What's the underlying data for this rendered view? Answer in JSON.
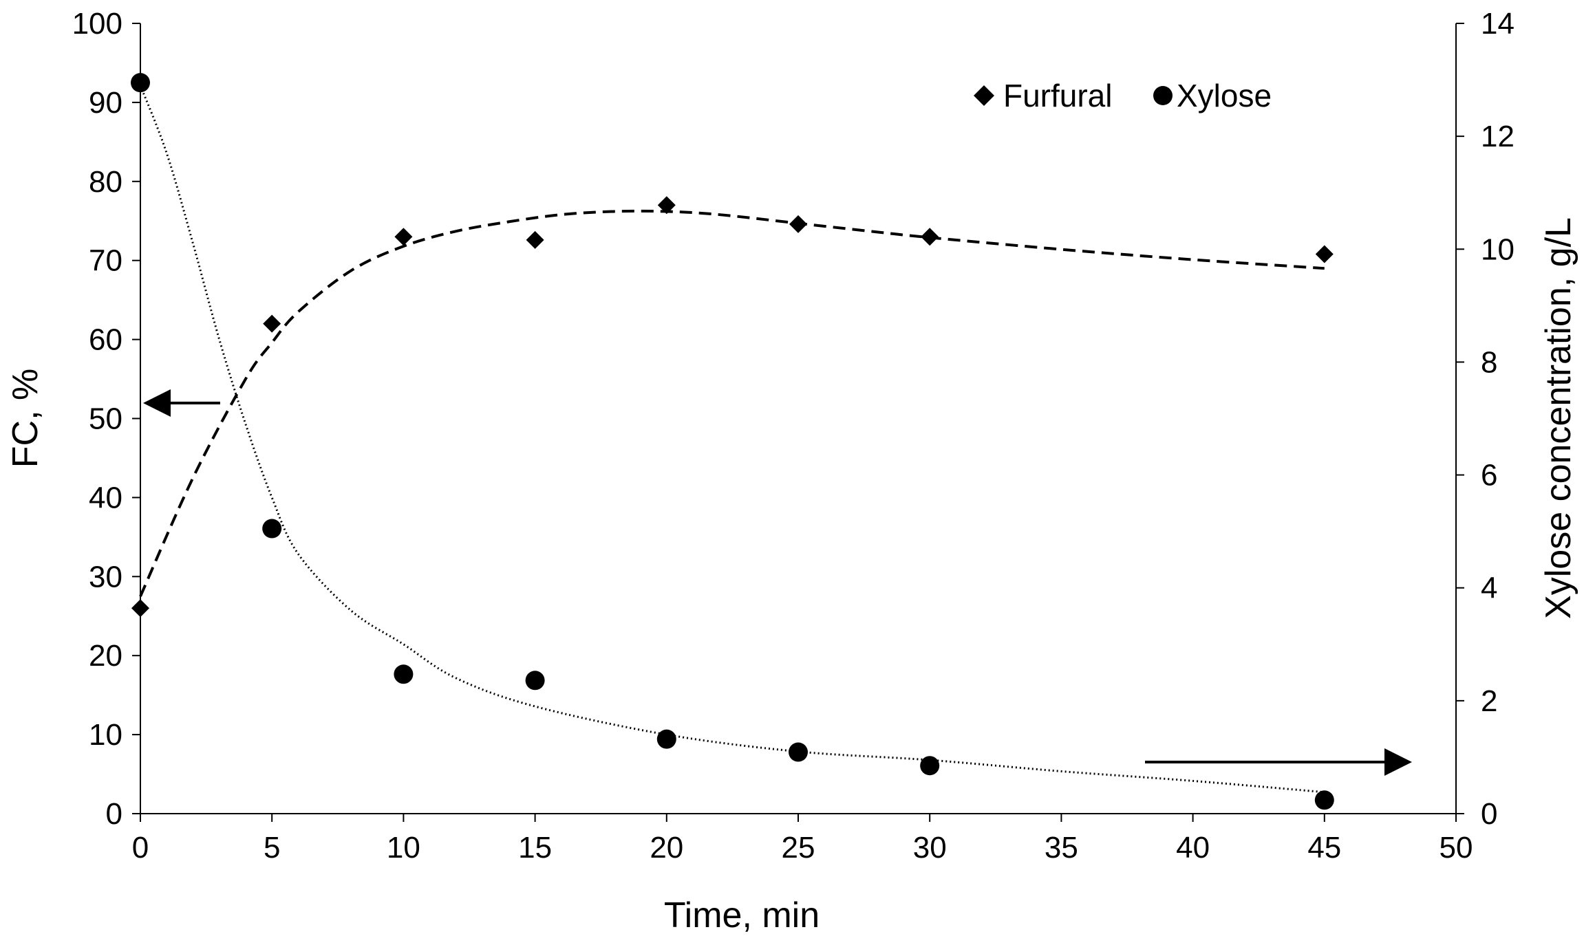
{
  "chart_data": {
    "type": "scatter",
    "title": "",
    "xlabel": "Time, min",
    "ylabel_left": "FC, %",
    "ylabel_right": "Xylose concentration, g/L",
    "xlim": [
      0,
      50
    ],
    "ylim_left": [
      0,
      100
    ],
    "ylim_right": [
      0,
      14
    ],
    "x_ticks": [
      0,
      5,
      10,
      15,
      20,
      25,
      30,
      35,
      40,
      45,
      50
    ],
    "y_left_ticks": [
      0,
      10,
      20,
      30,
      40,
      50,
      60,
      70,
      80,
      90,
      100
    ],
    "y_right_ticks": [
      0,
      2,
      4,
      6,
      8,
      10,
      12,
      14
    ],
    "grid": false,
    "legend_position": "top-right",
    "series": [
      {
        "name": "Furfural",
        "axis": "left",
        "marker": "diamond",
        "x": [
          0,
          5,
          10,
          15,
          20,
          25,
          30,
          45
        ],
        "values": [
          26,
          62,
          73,
          72.6,
          77,
          74.6,
          73,
          70.8
        ],
        "trend_style": "dashed",
        "trend_x": [
          0,
          2,
          4,
          5,
          6,
          8,
          10,
          12,
          14,
          16,
          18,
          20,
          22,
          25,
          28,
          30,
          35,
          40,
          45
        ],
        "trend_y": [
          27.5,
          42.5,
          55,
          59.6,
          63.5,
          68.7,
          71.8,
          73.7,
          74.9,
          75.8,
          76.2,
          76.2,
          75.8,
          74.7,
          73.6,
          72.9,
          71.4,
          70.1,
          69
        ]
      },
      {
        "name": "Xylose",
        "axis": "right",
        "marker": "circle",
        "x": [
          0,
          5,
          10,
          15,
          20,
          25,
          30,
          45
        ],
        "values": [
          12.95,
          5.05,
          2.47,
          2.36,
          1.32,
          1.09,
          0.85,
          0.24
        ],
        "trend_style": "dotted",
        "trend_x": [
          0,
          1,
          2,
          3,
          4,
          5,
          6,
          8,
          10,
          12,
          15,
          20,
          25,
          30,
          35,
          40,
          45
        ],
        "trend_y": [
          12.9,
          11.7,
          10.1,
          8.4,
          6.9,
          5.6,
          4.6,
          3.6,
          3.0,
          2.4,
          1.9,
          1.4,
          1.1,
          0.95,
          0.75,
          0.58,
          0.38
        ]
      }
    ],
    "annotations": [
      {
        "type": "arrow",
        "direction": "left",
        "meaning": "Furfural series refers to left axis (FC, %)"
      },
      {
        "type": "arrow",
        "direction": "right",
        "meaning": "Xylose series refers to right axis (Xylose concentration, g/L)"
      }
    ]
  }
}
